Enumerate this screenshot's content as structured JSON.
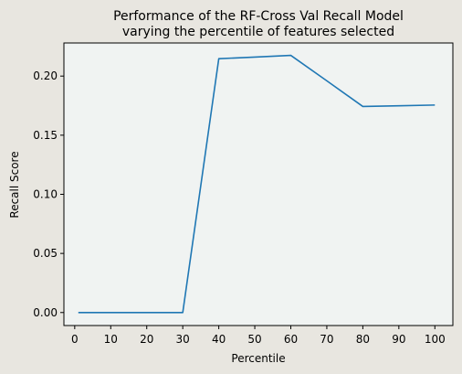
{
  "chart_data": {
    "type": "line",
    "title_lines": [
      "Performance of the RF-Cross Val Recall Model",
      "varying the percentile of features selected"
    ],
    "xlabel": "Percentile",
    "ylabel": "Recall Score",
    "xlim": [
      -3,
      105
    ],
    "ylim": [
      -0.011,
      0.228
    ],
    "xticks": [
      0,
      10,
      20,
      30,
      40,
      50,
      60,
      70,
      80,
      90,
      100
    ],
    "xtick_labels": [
      "0",
      "10",
      "20",
      "30",
      "40",
      "50",
      "60",
      "70",
      "80",
      "90",
      "100"
    ],
    "yticks": [
      0.0,
      0.05,
      0.1,
      0.15,
      0.2
    ],
    "ytick_labels": [
      "0.00",
      "0.05",
      "0.10",
      "0.15",
      "0.20"
    ],
    "grid": false,
    "series": [
      {
        "x": [
          1,
          10,
          20,
          30,
          40,
          50,
          60,
          70,
          80,
          90,
          100
        ],
        "y": [
          0.0,
          0.0,
          0.0,
          0.0,
          0.2147,
          0.2161,
          0.2175,
          0.196,
          0.1743,
          0.1749,
          0.1755
        ],
        "color": "#1f77b4"
      }
    ],
    "colors": {
      "figure_bg": "#e8e6e0",
      "axes_bg": "#f0f3f2",
      "axis": "#000000"
    }
  }
}
